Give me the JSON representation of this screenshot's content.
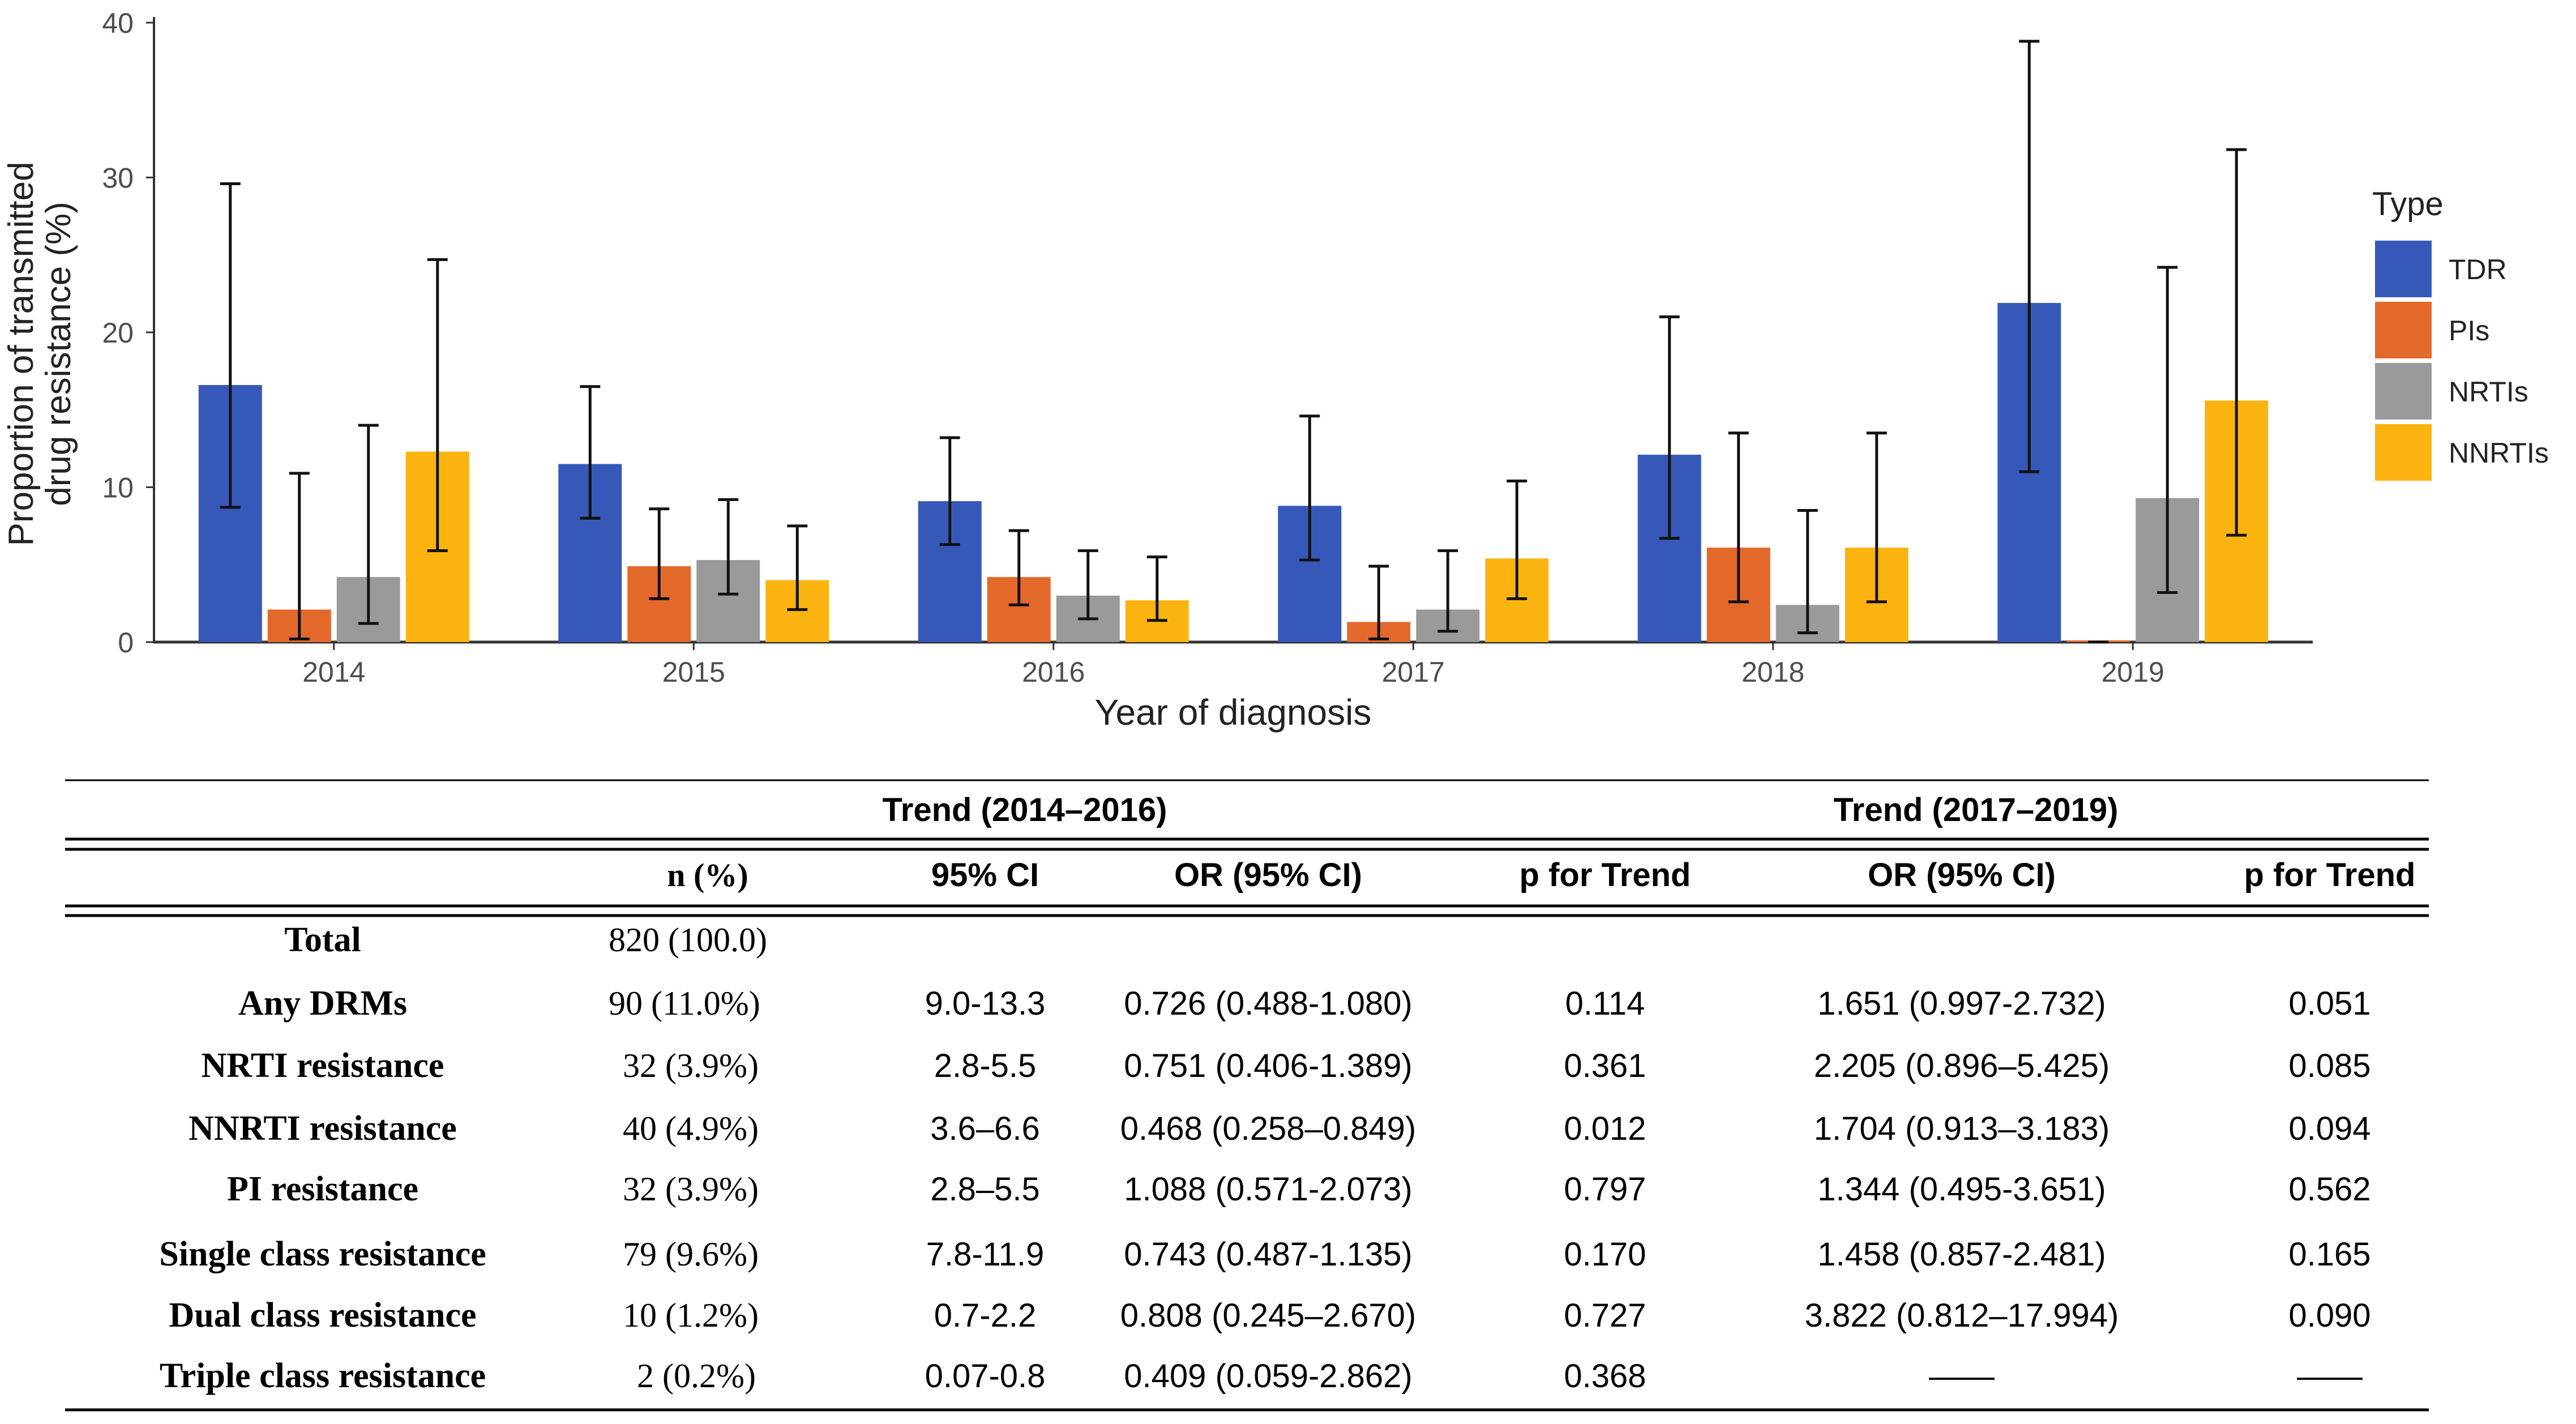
{
  "chart_data": {
    "type": "bar",
    "title": "",
    "xlabel": "Year of diagnosis",
    "ylabel_lines": [
      "Proportion of transmitted",
      "drug resistance (%)"
    ],
    "ylim": [
      0,
      40
    ],
    "yticks": [
      "0",
      "10",
      "20",
      "30",
      "40"
    ],
    "categories": [
      "2014",
      "2015",
      "2016",
      "2017",
      "2018",
      "2019"
    ],
    "legend_title": "Type",
    "legend_position": "right",
    "series": [
      {
        "name": "TDR",
        "color": "#3659b9",
        "values": [
          16.6,
          11.5,
          9.1,
          8.8,
          12.1,
          21.9
        ],
        "ci_low": [
          8.7,
          8.0,
          6.3,
          5.3,
          6.7,
          11.0
        ],
        "ci_high": [
          29.6,
          16.5,
          13.2,
          14.6,
          21.0,
          38.8
        ]
      },
      {
        "name": "PIs",
        "color": "#e3692a",
        "values": [
          2.1,
          4.9,
          4.2,
          1.3,
          6.1,
          0.0
        ],
        "ci_low": [
          0.2,
          2.8,
          2.4,
          0.2,
          2.6,
          0.0
        ],
        "ci_high": [
          10.9,
          8.6,
          7.2,
          4.9,
          13.5,
          0.0
        ]
      },
      {
        "name": "NRTIs",
        "color": "#9a9a9a",
        "values": [
          4.2,
          5.3,
          3.0,
          2.1,
          2.4,
          9.3
        ],
        "ci_low": [
          1.2,
          3.1,
          1.5,
          0.7,
          0.6,
          3.2
        ],
        "ci_high": [
          14.0,
          9.2,
          5.9,
          5.9,
          8.5,
          24.2
        ]
      },
      {
        "name": "NNRTIs",
        "color": "#fbb40f",
        "values": [
          12.3,
          4.0,
          2.7,
          5.4,
          6.1,
          15.6
        ],
        "ci_low": [
          5.9,
          2.1,
          1.4,
          2.8,
          2.6,
          6.9
        ],
        "ci_high": [
          24.7,
          7.5,
          5.5,
          10.4,
          13.5,
          31.8
        ]
      }
    ]
  },
  "table": {
    "group1_title": "Trend (2014–2016)",
    "group2_title": "Trend (2017–2019)",
    "headers": [
      "n (%)",
      "95% CI",
      "OR (95% CI)",
      "p for Trend",
      "OR (95% CI)",
      "p for Trend"
    ],
    "rows": [
      {
        "label": "Total",
        "n": "820 (100.0)",
        "ci": "",
        "or1": "",
        "p1": "",
        "or2": "",
        "p2": ""
      },
      {
        "label": "Any DRMs",
        "n": "90 (11.0%)",
        "ci": "9.0-13.3",
        "or1": "0.726 (0.488-1.080)",
        "p1": "0.114",
        "or2": "1.651 (0.997-2.732)",
        "p2": "0.051"
      },
      {
        "label": "NRTI resistance",
        "n": "32 (3.9%)",
        "ci": "2.8-5.5",
        "or1": "0.751 (0.406-1.389)",
        "p1": "0.361",
        "or2": "2.205 (0.896–5.425)",
        "p2": "0.085"
      },
      {
        "label": "NNRTI resistance",
        "n": "40 (4.9%)",
        "ci": "3.6–6.6",
        "or1": "0.468 (0.258–0.849)",
        "p1": "0.012",
        "or2": "1.704 (0.913–3.183)",
        "p2": "0.094"
      },
      {
        "label": "PI resistance",
        "n": "32 (3.9%)",
        "ci": "2.8–5.5",
        "or1": "1.088 (0.571-2.073)",
        "p1": "0.797",
        "or2": "1.344 (0.495-3.651)",
        "p2": "0.562"
      },
      {
        "label": "Single class resistance",
        "n": "79 (9.6%)",
        "ci": "7.8-11.9",
        "or1": "0.743 (0.487-1.135)",
        "p1": "0.170",
        "or2": "1.458 (0.857-2.481)",
        "p2": "0.165"
      },
      {
        "label": "Dual class resistance",
        "n": "10 (1.2%)",
        "ci": "0.7-2.2",
        "or1": "0.808 (0.245–2.670)",
        "p1": "0.727",
        "or2": "3.822 (0.812–17.994)",
        "p2": "0.090"
      },
      {
        "label": "Triple class resistance",
        "n": "2 (0.2%)",
        "ci": "0.07-0.8",
        "or1": "0.409 (0.059-2.862)",
        "p1": "0.368",
        "or2": "——",
        "p2": "——"
      }
    ]
  }
}
